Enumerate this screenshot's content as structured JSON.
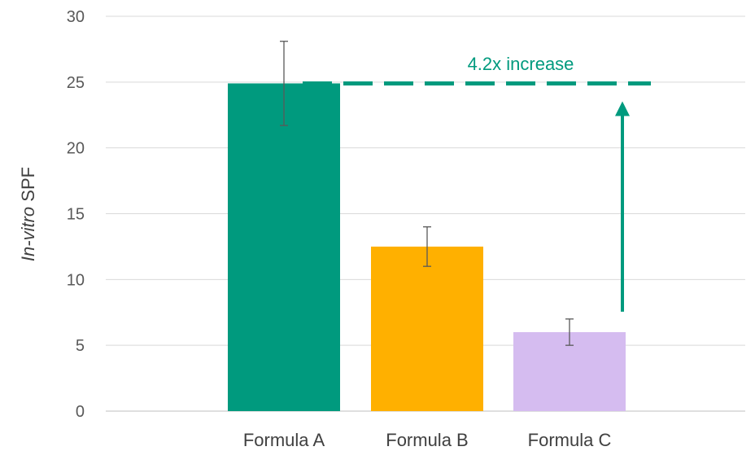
{
  "chart_data": {
    "type": "bar",
    "categories": [
      "Formula A",
      "Formula B",
      "Formula C"
    ],
    "values": [
      24.9,
      12.5,
      6.0
    ],
    "error_bars": [
      {
        "low": 21.7,
        "high": 28.1
      },
      {
        "low": 11.0,
        "high": 14.0
      },
      {
        "low": 5.0,
        "high": 7.0
      }
    ],
    "colors": [
      "#009A7E",
      "#FFB000",
      "#D5BCF0"
    ],
    "ylabel_italic": "In-vitro",
    "ylabel_rest": " SPF",
    "ylim": [
      0,
      30
    ],
    "yticks": [
      "0",
      "5",
      "10",
      "15",
      "20",
      "25",
      "30"
    ],
    "grid": true,
    "annotation": {
      "text": "4.2x increase",
      "reference_value": 24.9,
      "arrow_from_value": 7.0,
      "color": "#009A7E"
    }
  }
}
